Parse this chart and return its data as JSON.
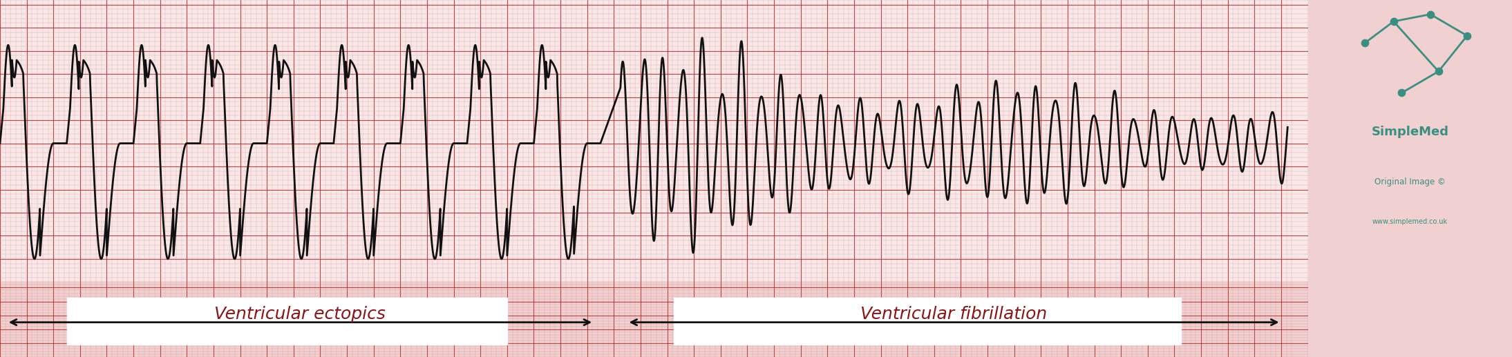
{
  "bg_color": "#f0d0d0",
  "grid_major_color": "#b03030",
  "grid_minor_color": "#d89090",
  "grid_bg": "#f8e8e8",
  "ecg_color": "#111111",
  "ecg_linewidth": 2.0,
  "fig_width": 21.88,
  "fig_height": 5.17,
  "label1": "Ventricular ectopics",
  "label2": "Ventricular fibrillation",
  "label_color": "#8b1515",
  "label_fontsize": 18,
  "simplemed_color": "#3a9080",
  "arrow_color": "#111111",
  "white_box_color": "#ffffff",
  "simplemed_text": "SimpleMed",
  "simplemed_sub1": "Original Image ©",
  "simplemed_sub2": "www.simplemed.co.uk"
}
